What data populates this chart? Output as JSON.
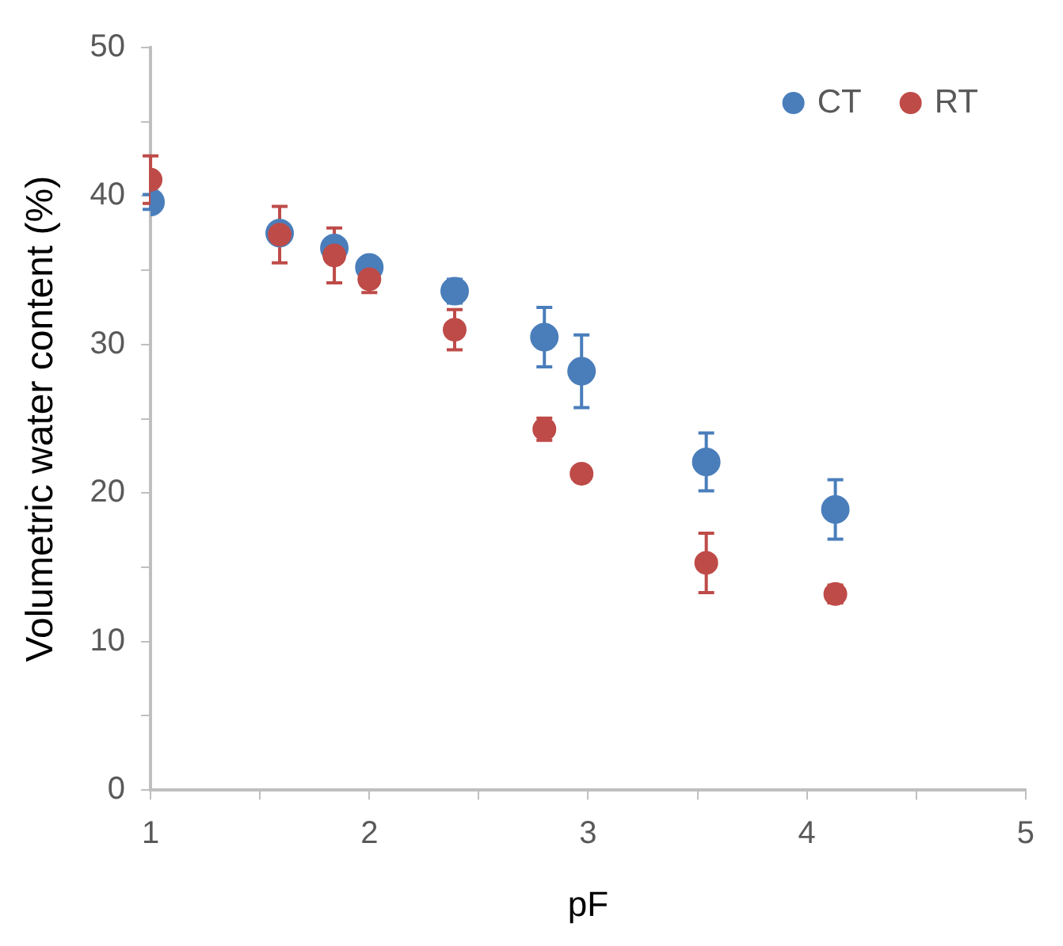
{
  "chart_data": {
    "type": "scatter",
    "xlabel": "pF",
    "ylabel": "Volumetric water content (%)",
    "xlim": [
      1,
      5
    ],
    "xticks": [
      1,
      {
        "value": 1.5,
        "label": null
      },
      2,
      {
        "value": 2.5,
        "label": null
      },
      3,
      {
        "value": 3.5,
        "label": null
      },
      4,
      {
        "value": 4.5,
        "label": null
      },
      5
    ],
    "ylim": [
      0,
      50
    ],
    "yticks": [
      0,
      {
        "value": 5,
        "label": null
      },
      10,
      {
        "value": 15,
        "label": null
      },
      20,
      {
        "value": 25,
        "label": null
      },
      30,
      {
        "value": 35,
        "label": null
      },
      40,
      {
        "value": 45,
        "label": null
      },
      50
    ],
    "grid": false,
    "legend": "top right",
    "marker": "circle",
    "series": [
      {
        "name": "CT",
        "color": "#4a7ebb",
        "x": [
          1,
          1.59,
          1.84,
          2.0,
          2.39,
          2.8,
          2.97,
          3.54,
          4.13
        ],
        "values": [
          39.6,
          37.5,
          36.5,
          35.2,
          33.6,
          30.5,
          28.2,
          22.1,
          18.9
        ],
        "errors": [
          0.5,
          null,
          null,
          0.3,
          0.8,
          2.0,
          2.45,
          1.95,
          2.0
        ]
      },
      {
        "name": "RT",
        "color": "#be4b48",
        "x": [
          1,
          1.59,
          1.84,
          2.0,
          2.39,
          2.8,
          2.97,
          3.54,
          4.13
        ],
        "values": [
          41.1,
          37.4,
          36.0,
          34.4,
          31.0,
          24.3,
          21.3,
          15.3,
          13.2
        ],
        "errors": [
          1.6,
          1.9,
          1.85,
          0.9,
          1.35,
          0.75,
          0.5,
          2.0,
          0.6
        ]
      }
    ]
  }
}
